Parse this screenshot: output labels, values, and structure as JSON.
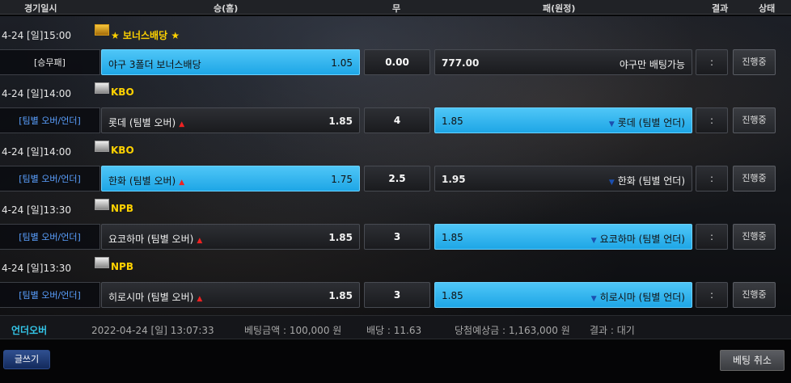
{
  "header": {
    "time": "경기일시",
    "home": "승(홈)",
    "draw": "무",
    "away": "패(원정)",
    "result": "결과",
    "status": "상태"
  },
  "leagues": [
    {
      "time": "4-24 [일]15:00",
      "name": "★ 보너스배당 ★",
      "icon": "bonus-icon"
    },
    {
      "time": "4-24 [일]14:00",
      "name": "KBO",
      "icon": "kbo-icon"
    },
    {
      "time": "4-24 [일]14:00",
      "name": "KBO",
      "icon": "kbo-icon"
    },
    {
      "time": "4-24 [일]13:30",
      "name": "NPB",
      "icon": "npb-icon"
    },
    {
      "time": "4-24 [일]13:30",
      "name": "NPB",
      "icon": "npb-icon"
    }
  ],
  "games": [
    {
      "type": "[승무패]",
      "home_label": "야구 3폴더 보너스배당",
      "home_odds": "1.05",
      "draw": "0.00",
      "away_odds": "777.00",
      "away_label": "야구만 배팅가능",
      "result": ":",
      "status": "진행중",
      "selected": "home"
    },
    {
      "type": "[팀별 오버/언더]",
      "home_label": "롯데 (팀별 오버)",
      "home_odds": "1.85",
      "draw": "4",
      "away_odds": "1.85",
      "away_label": "롯데 (팀별 언더)",
      "result": ":",
      "status": "진행중",
      "selected": "away"
    },
    {
      "type": "[팀별 오버/언더]",
      "home_label": "한화 (팀별 오버)",
      "home_odds": "1.75",
      "draw": "2.5",
      "away_odds": "1.95",
      "away_label": "한화 (팀별 언더)",
      "result": ":",
      "status": "진행중",
      "selected": "home"
    },
    {
      "type": "[팀별 오버/언더]",
      "home_label": "요코하마 (팀별 오버)",
      "home_odds": "1.85",
      "draw": "3",
      "away_odds": "1.85",
      "away_label": "요코하마 (팀별 언더)",
      "result": ":",
      "status": "진행중",
      "selected": "away"
    },
    {
      "type": "[팀별 오버/언더]",
      "home_label": "히로시마 (팀별 오버)",
      "home_odds": "1.85",
      "draw": "3",
      "away_odds": "1.85",
      "away_label": "히로시마 (팀별 언더)",
      "result": ":",
      "status": "진행중",
      "selected": "away"
    }
  ],
  "summary": {
    "bet_type": "언더오버",
    "datetime": "2022-04-24 [일] 13:07:33",
    "bet_amount": "베팅금액 : 100,000 원",
    "odds": "배당 : 11.63",
    "expected_win": "당첨예상금 : 1,163,000 원",
    "result": "결과 : 대기"
  },
  "buttons": {
    "write": "글쓰기",
    "cancel_bet": "베팅 취소"
  },
  "colors": {
    "selected": "#2bb3ee",
    "league_name": "#ffd200",
    "type_text": "#5aa0ff",
    "summary_type": "#34c6e8"
  }
}
